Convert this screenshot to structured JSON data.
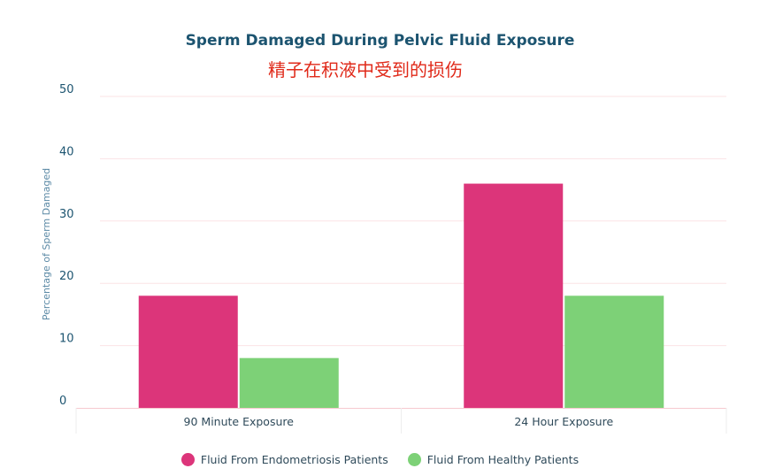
{
  "chart_data": {
    "type": "bar",
    "title": "Sperm Damaged During Pelvic Fluid Exposure",
    "subtitle": "精子在积液中受到的损伤",
    "xlabel": "",
    "ylabel": "Percentage of Sperm Damaged",
    "ylim": [
      0,
      50
    ],
    "yticks": [
      "0",
      "10",
      "20",
      "30",
      "40",
      "50"
    ],
    "categories": [
      "90 Minute Exposure",
      "24 Hour Exposure"
    ],
    "series": [
      {
        "name": "Fluid From Endometriosis Patients",
        "values": [
          18,
          36
        ],
        "color": "#dc357a"
      },
      {
        "name": "Fluid From Healthy Patients",
        "values": [
          8,
          18
        ],
        "color": "#7dd177"
      }
    ],
    "grid": true,
    "legend": "bottom-center"
  }
}
